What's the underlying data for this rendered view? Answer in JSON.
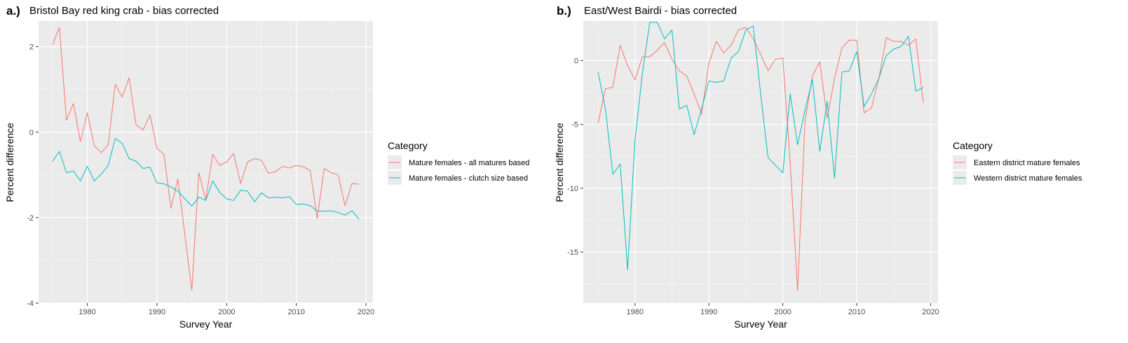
{
  "chart_data": [
    {
      "panel_label": "a.)",
      "type": "line",
      "title": "Bristol Bay red king crab - bias corrected",
      "xlabel": "Survey Year",
      "ylabel": "Percent difference",
      "xlim": [
        1973,
        2021
      ],
      "ylim": [
        -4,
        2.6
      ],
      "x_ticks": [
        1980,
        1990,
        2000,
        2010,
        2020
      ],
      "y_ticks": [
        -4,
        -2,
        0,
        2
      ],
      "grid": true,
      "legend": {
        "title": "Category",
        "position": "right"
      },
      "series": [
        {
          "name": "Mature females - all matures based",
          "color": "#F8766D",
          "x": [
            1975,
            1976,
            1977,
            1978,
            1979,
            1980,
            1981,
            1982,
            1983,
            1984,
            1985,
            1986,
            1987,
            1988,
            1989,
            1990,
            1991,
            1992,
            1993,
            1994,
            1995,
            1996,
            1997,
            1998,
            1999,
            2000,
            2001,
            2002,
            2003,
            2004,
            2005,
            2006,
            2007,
            2008,
            2009,
            2010,
            2011,
            2012,
            2013,
            2014,
            2015,
            2016,
            2017,
            2018,
            2019
          ],
          "values": [
            2.05,
            2.45,
            0.28,
            0.67,
            -0.22,
            0.45,
            -0.32,
            -0.48,
            -0.3,
            1.12,
            0.82,
            1.27,
            0.17,
            0.05,
            0.4,
            -0.38,
            -0.52,
            -1.78,
            -1.1,
            -2.4,
            -3.7,
            -0.95,
            -1.58,
            -0.52,
            -0.78,
            -0.7,
            -0.5,
            -1.2,
            -0.7,
            -0.62,
            -0.66,
            -0.96,
            -0.93,
            -0.8,
            -0.84,
            -0.78,
            -0.81,
            -0.9,
            -2.02,
            -0.85,
            -0.95,
            -1.0,
            -1.72,
            -1.2,
            -1.22
          ]
        },
        {
          "name": "Mature females - clutch size based",
          "color": "#00BFC4",
          "x": [
            1975,
            1976,
            1977,
            1978,
            1979,
            1980,
            1981,
            1982,
            1983,
            1984,
            1985,
            1986,
            1987,
            1988,
            1989,
            1990,
            1991,
            1992,
            1993,
            1994,
            1995,
            1996,
            1997,
            1998,
            1999,
            2000,
            2001,
            2002,
            2003,
            2004,
            2005,
            2006,
            2007,
            2008,
            2009,
            2010,
            2011,
            2012,
            2013,
            2014,
            2015,
            2016,
            2017,
            2018,
            2019
          ],
          "values": [
            -0.68,
            -0.45,
            -0.95,
            -0.91,
            -1.14,
            -0.8,
            -1.14,
            -0.98,
            -0.78,
            -0.15,
            -0.26,
            -0.62,
            -0.68,
            -0.85,
            -0.82,
            -1.19,
            -1.21,
            -1.28,
            -1.38,
            -1.56,
            -1.73,
            -1.52,
            -1.6,
            -1.14,
            -1.41,
            -1.56,
            -1.6,
            -1.36,
            -1.38,
            -1.63,
            -1.42,
            -1.54,
            -1.52,
            -1.54,
            -1.51,
            -1.69,
            -1.68,
            -1.72,
            -1.85,
            -1.85,
            -1.84,
            -1.88,
            -1.94,
            -1.84,
            -2.04
          ]
        }
      ]
    },
    {
      "panel_label": "b.)",
      "type": "line",
      "title": "East/West Bairdi - bias corrected",
      "xlabel": "Survey Year",
      "ylabel": "Percent difference",
      "xlim": [
        1973,
        2021
      ],
      "ylim": [
        -19,
        3.1
      ],
      "x_ticks": [
        1980,
        1990,
        2000,
        2010,
        2020
      ],
      "y_ticks": [
        -15,
        -10,
        -5,
        0
      ],
      "grid": true,
      "legend": {
        "title": "Category",
        "position": "right"
      },
      "series": [
        {
          "name": "Eastern district mature females",
          "color": "#F8766D",
          "x": [
            1975,
            1976,
            1977,
            1978,
            1979,
            1980,
            1981,
            1982,
            1983,
            1984,
            1985,
            1986,
            1987,
            1988,
            1989,
            1990,
            1991,
            1992,
            1993,
            1994,
            1995,
            1996,
            1997,
            1998,
            1999,
            2000,
            2001,
            2002,
            2003,
            2004,
            2005,
            2006,
            2007,
            2008,
            2009,
            2010,
            2011,
            2012,
            2013,
            2014,
            2015,
            2016,
            2017,
            2018,
            2019
          ],
          "values": [
            -4.9,
            -2.2,
            -2.1,
            1.2,
            -0.4,
            -1.5,
            0.3,
            0.3,
            0.8,
            1.4,
            0.1,
            -0.8,
            -1.2,
            -2.6,
            -4.2,
            -0.2,
            1.5,
            0.6,
            1.2,
            2.4,
            2.6,
            1.7,
            0.5,
            -0.8,
            0.1,
            0.2,
            -8.0,
            -18.0,
            -4.8,
            -1.2,
            -0.1,
            -4.5,
            -1.4,
            1.0,
            1.6,
            1.6,
            -4.1,
            -3.7,
            -1.4,
            1.8,
            1.5,
            1.5,
            1.2,
            1.7,
            -3.3
          ]
        },
        {
          "name": "Western district mature females",
          "color": "#00BFC4",
          "x": [
            1975,
            1976,
            1977,
            1978,
            1979,
            1980,
            1981,
            1982,
            1983,
            1984,
            1985,
            1986,
            1987,
            1988,
            1989,
            1990,
            1991,
            1992,
            1993,
            1994,
            1995,
            1996,
            1997,
            1998,
            1999,
            2000,
            2001,
            2002,
            2003,
            2004,
            2005,
            2006,
            2007,
            2008,
            2009,
            2010,
            2011,
            2012,
            2013,
            2014,
            2015,
            2016,
            2017,
            2018,
            2019
          ],
          "values": [
            -0.9,
            -3.8,
            -8.9,
            -8.1,
            -16.4,
            -6.2,
            -1.0,
            3.0,
            3.0,
            1.7,
            2.4,
            -3.8,
            -3.5,
            -5.8,
            -3.8,
            -1.6,
            -1.7,
            -1.6,
            0.2,
            0.7,
            2.4,
            2.7,
            -2.6,
            -7.6,
            -8.2,
            -8.8,
            -2.6,
            -6.6,
            -3.9,
            -1.5,
            -7.1,
            -3.2,
            -9.2,
            -0.9,
            -0.8,
            0.7,
            -3.6,
            -2.6,
            -1.4,
            0.4,
            0.9,
            1.1,
            1.9,
            -2.4,
            -2.1
          ]
        }
      ]
    }
  ]
}
